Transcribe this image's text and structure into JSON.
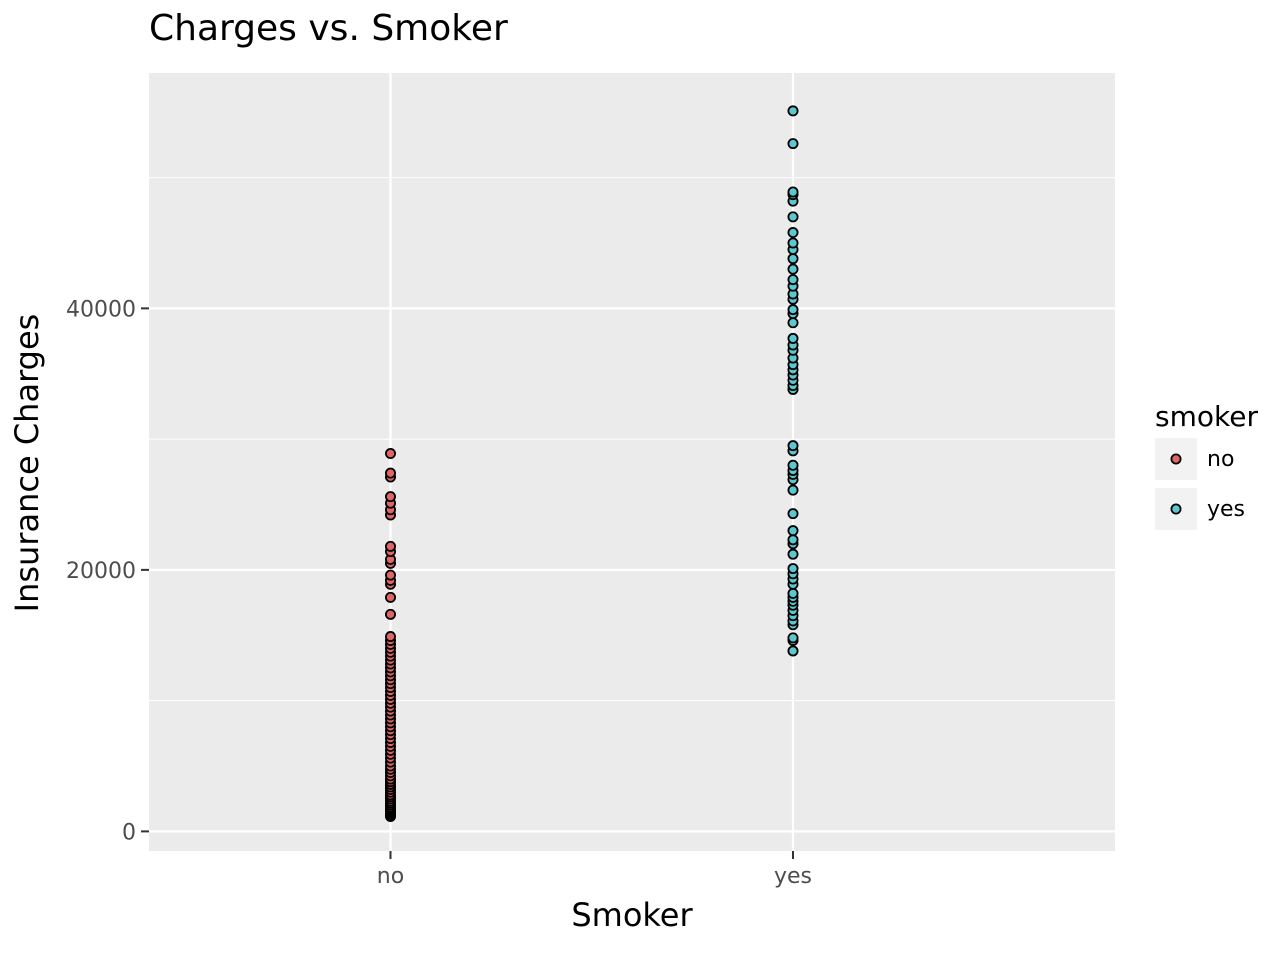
{
  "chart_data": {
    "type": "scatter",
    "title": "Charges vs. Smoker",
    "xlabel": "Smoker",
    "ylabel": "Insurance Charges",
    "categories": [
      "no",
      "yes"
    ],
    "y_ticks": [
      0,
      20000,
      40000
    ],
    "ylim": [
      -1500,
      58000
    ],
    "grid": true,
    "legend": {
      "title": "smoker",
      "placement": "right",
      "entries": [
        {
          "label": "no",
          "color": "#F8766D"
        },
        {
          "label": "yes",
          "color": "#00BFC4"
        }
      ]
    },
    "series": [
      {
        "category": "no",
        "color": "#E06666",
        "values": [
          1140,
          1250,
          1380,
          1480,
          1600,
          1720,
          1850,
          2000,
          2150,
          2300,
          2480,
          2650,
          2800,
          3000,
          3200,
          3400,
          3600,
          3800,
          4000,
          4250,
          4500,
          4750,
          5000,
          5300,
          5600,
          5900,
          6200,
          6500,
          6800,
          7100,
          7400,
          7700,
          8000,
          8300,
          8600,
          8900,
          9200,
          9500,
          9800,
          10100,
          10400,
          10700,
          11000,
          11300,
          11600,
          11900,
          12200,
          12500,
          12800,
          13100,
          13400,
          13700,
          14000,
          14300,
          14600,
          14900,
          16600,
          17900,
          18900,
          19200,
          19600,
          20500,
          20800,
          21400,
          21800,
          24200,
          24600,
          25100,
          25600,
          27100,
          27400,
          28900
        ]
      },
      {
        "category": "yes",
        "color": "#5BC8D0",
        "values": [
          13800,
          14600,
          14800,
          15800,
          16100,
          16500,
          16900,
          17300,
          17600,
          17900,
          18200,
          18900,
          19300,
          19700,
          20100,
          21200,
          22000,
          22300,
          23000,
          24300,
          26100,
          26900,
          27300,
          27600,
          28000,
          29100,
          29500,
          33800,
          34100,
          34500,
          34900,
          35300,
          35700,
          36200,
          36800,
          37200,
          37700,
          38900,
          39600,
          39900,
          40700,
          41100,
          41700,
          42200,
          43000,
          43800,
          44500,
          45000,
          45800,
          47000,
          48200,
          48700,
          48900,
          52600,
          55100
        ]
      }
    ]
  }
}
